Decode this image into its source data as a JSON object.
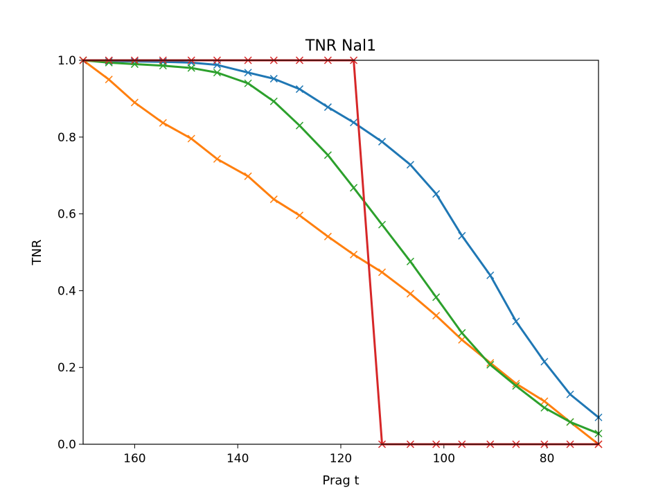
{
  "chart_data": {
    "type": "line",
    "title": "TNR Nal1",
    "xlabel": "Prag t",
    "ylabel": "TNR",
    "xlim": [
      170,
      70
    ],
    "ylim": [
      0.0,
      1.0
    ],
    "xticks": [
      160,
      140,
      120,
      100,
      80
    ],
    "yticks": [
      "0.0",
      "0.2",
      "0.4",
      "0.6",
      "0.8",
      "1.0"
    ],
    "x": [
      170,
      165,
      160,
      154.5,
      149,
      144,
      138,
      133,
      128,
      122.5,
      117.5,
      112,
      106.5,
      101.5,
      96.5,
      91,
      86,
      80.5,
      75.5,
      70
    ],
    "series": [
      {
        "name": "blue",
        "color": "#1f77b4",
        "values": [
          1.0,
          0.998,
          0.997,
          0.996,
          0.994,
          0.988,
          0.968,
          0.952,
          0.925,
          0.878,
          0.838,
          0.788,
          0.728,
          0.652,
          0.543,
          0.44,
          0.32,
          0.215,
          0.13,
          0.07
        ]
      },
      {
        "name": "orange",
        "color": "#ff7f0e",
        "values": [
          1.0,
          0.95,
          0.89,
          0.837,
          0.796,
          0.743,
          0.698,
          0.638,
          0.596,
          0.541,
          0.494,
          0.448,
          0.392,
          0.335,
          0.272,
          0.212,
          0.158,
          0.112,
          0.058,
          0.0
        ]
      },
      {
        "name": "green",
        "color": "#2ca02c",
        "values": [
          1.0,
          0.994,
          0.99,
          0.986,
          0.98,
          0.968,
          0.94,
          0.893,
          0.83,
          0.753,
          0.668,
          0.572,
          0.476,
          0.383,
          0.29,
          0.207,
          0.152,
          0.095,
          0.058,
          0.028
        ]
      },
      {
        "name": "red",
        "color": "#d62728",
        "values": [
          1.0,
          1.0,
          1.0,
          1.0,
          1.0,
          1.0,
          1.0,
          1.0,
          1.0,
          1.0,
          1.0,
          0.0,
          0.0,
          0.0,
          0.0,
          0.0,
          0.0,
          0.0,
          0.0,
          0.0
        ]
      }
    ]
  }
}
